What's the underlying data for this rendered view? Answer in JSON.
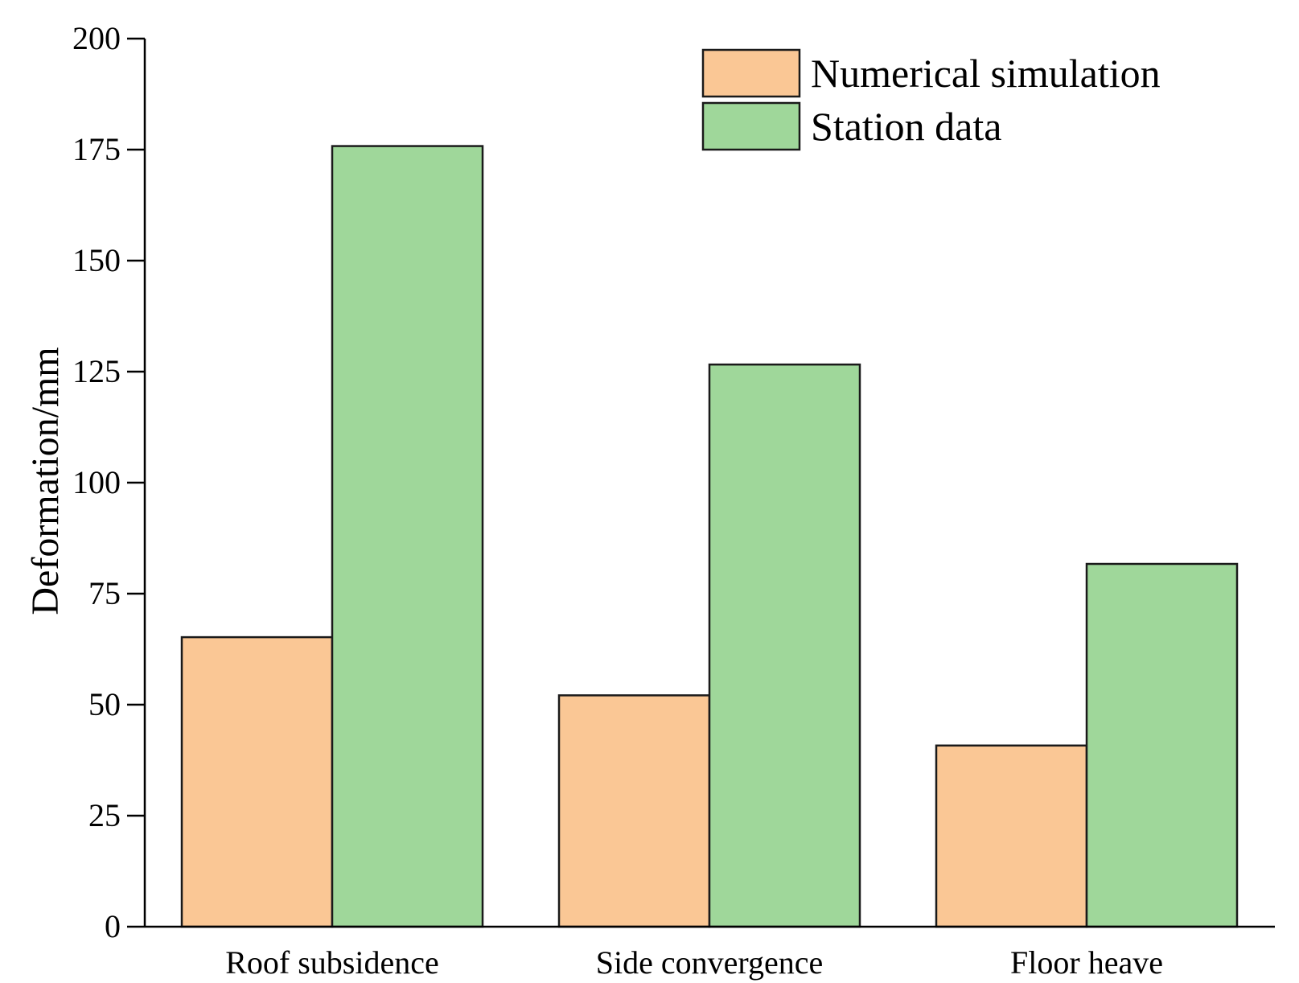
{
  "chart_data": {
    "type": "bar",
    "categories": [
      "Roof subsidence",
      "Side convergence",
      "Floor heave"
    ],
    "series": [
      {
        "name": "Numerical simulation",
        "values": [
          65.2,
          52.1,
          40.8
        ],
        "color": "#fac795"
      },
      {
        "name": "Station data",
        "values": [
          175.8,
          126.6,
          81.7
        ],
        "color": "#9fd79a"
      }
    ],
    "ylabel": "Deformation/mm",
    "xlabel": "",
    "ylim": [
      0,
      200
    ],
    "yticks": [
      0,
      25,
      50,
      75,
      100,
      125,
      150,
      175,
      200
    ],
    "grid": false,
    "legend_position": "top-right"
  }
}
